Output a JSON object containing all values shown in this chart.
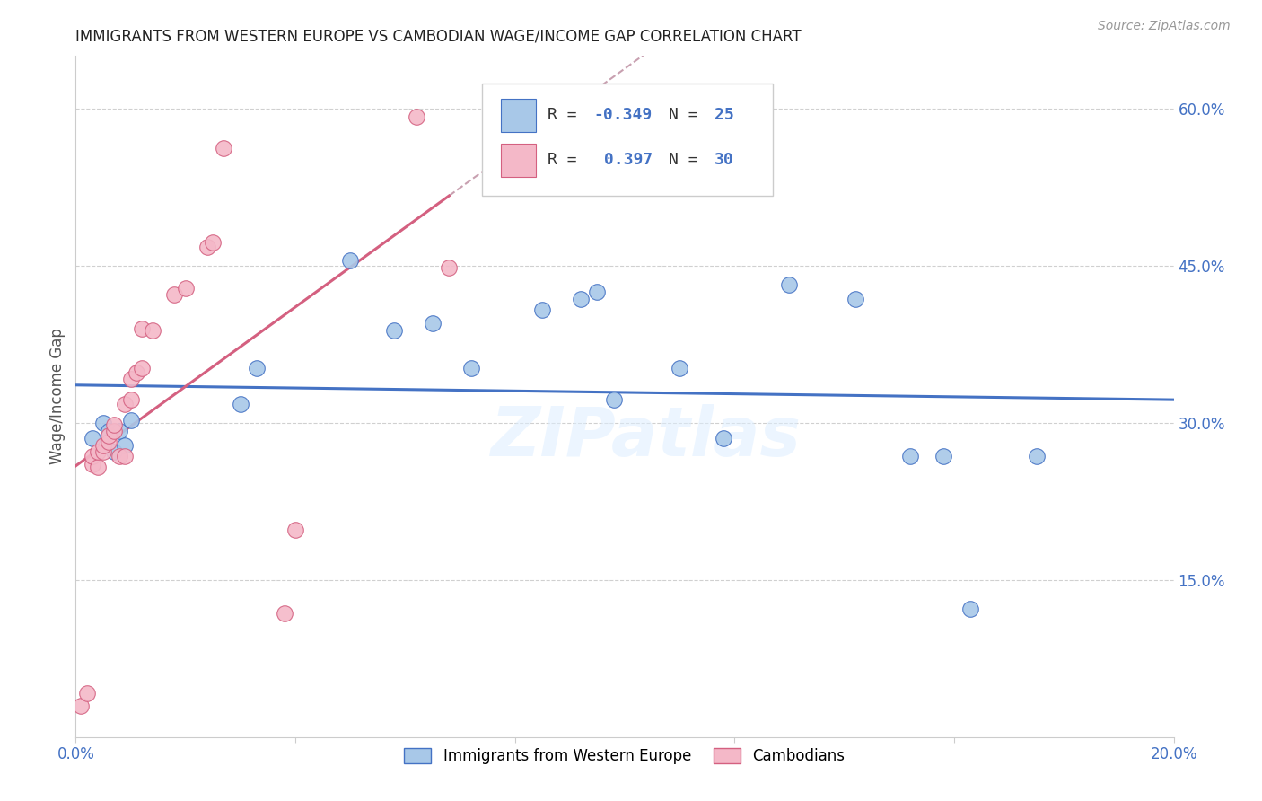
{
  "title": "IMMIGRANTS FROM WESTERN EUROPE VS CAMBODIAN WAGE/INCOME GAP CORRELATION CHART",
  "source": "Source: ZipAtlas.com",
  "ylabel": "Wage/Income Gap",
  "xlim": [
    0.0,
    0.2
  ],
  "ylim": [
    0.0,
    0.65
  ],
  "xtick_positions": [
    0.0,
    0.04,
    0.08,
    0.12,
    0.16,
    0.2
  ],
  "xtick_labels": [
    "0.0%",
    "",
    "",
    "",
    "",
    "20.0%"
  ],
  "yticks_right": [
    0.15,
    0.3,
    0.45,
    0.6
  ],
  "ytick_right_labels": [
    "15.0%",
    "30.0%",
    "45.0%",
    "60.0%"
  ],
  "blue_color": "#a8c8e8",
  "pink_color": "#f4b8c8",
  "blue_line_color": "#4472c4",
  "pink_line_color": "#d46080",
  "dashed_line_color": "#c8a0b0",
  "watermark": "ZIPatlas",
  "blue_points_x": [
    0.003,
    0.005,
    0.006,
    0.007,
    0.008,
    0.009,
    0.01,
    0.03,
    0.033,
    0.05,
    0.058,
    0.065,
    0.072,
    0.085,
    0.092,
    0.095,
    0.098,
    0.11,
    0.118,
    0.13,
    0.142,
    0.152,
    0.158,
    0.163,
    0.175
  ],
  "blue_points_y": [
    0.285,
    0.3,
    0.292,
    0.272,
    0.292,
    0.278,
    0.302,
    0.318,
    0.352,
    0.455,
    0.388,
    0.395,
    0.352,
    0.408,
    0.418,
    0.425,
    0.322,
    0.352,
    0.285,
    0.432,
    0.418,
    0.268,
    0.268,
    0.122,
    0.268
  ],
  "pink_points_x": [
    0.001,
    0.002,
    0.003,
    0.003,
    0.004,
    0.004,
    0.005,
    0.005,
    0.006,
    0.006,
    0.007,
    0.007,
    0.008,
    0.009,
    0.009,
    0.01,
    0.01,
    0.011,
    0.012,
    0.012,
    0.014,
    0.018,
    0.02,
    0.024,
    0.025,
    0.027,
    0.038,
    0.04,
    0.062,
    0.068
  ],
  "pink_points_y": [
    0.03,
    0.042,
    0.26,
    0.268,
    0.258,
    0.272,
    0.272,
    0.278,
    0.282,
    0.288,
    0.292,
    0.298,
    0.268,
    0.268,
    0.318,
    0.342,
    0.322,
    0.348,
    0.352,
    0.39,
    0.388,
    0.422,
    0.428,
    0.468,
    0.472,
    0.562,
    0.118,
    0.198,
    0.592,
    0.448
  ]
}
